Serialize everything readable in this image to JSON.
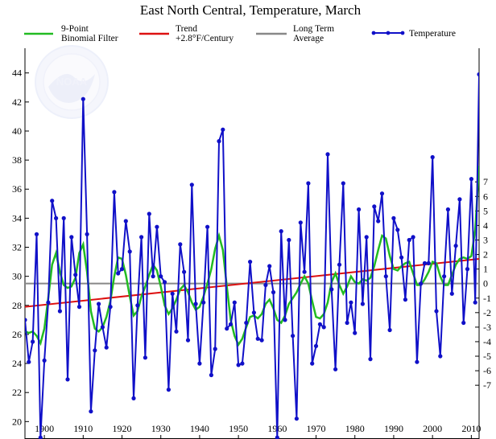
{
  "chart_data": {
    "type": "line",
    "title": "East North Central, Temperature, March",
    "legend": [
      {
        "label_lines": [
          "9-Point",
          "Binomial Filter"
        ],
        "color": "#22bb22",
        "kind": "line"
      },
      {
        "label_lines": [
          "Trend",
          "+2.8°F/Century"
        ],
        "color": "#dd1111",
        "kind": "line"
      },
      {
        "label_lines": [
          "Long Term",
          "Average"
        ],
        "color": "#888888",
        "kind": "line"
      },
      {
        "label_lines": [
          "Temperature"
        ],
        "color": "#1010c8",
        "kind": "line-marker"
      }
    ],
    "x_ticks": [
      1900,
      1910,
      1920,
      1930,
      1940,
      1950,
      1960,
      1970,
      1980,
      1990,
      2000,
      2010
    ],
    "xlim": [
      1895,
      2012
    ],
    "left_ticks": [
      20,
      22,
      24,
      26,
      28,
      30,
      32,
      34,
      36,
      38,
      40,
      42,
      44
    ],
    "ylim": [
      18.8,
      45.7
    ],
    "right_ticks": [
      -7,
      -6,
      -5,
      -4,
      -3,
      -2,
      -1,
      0,
      1,
      2,
      3,
      4,
      5,
      6,
      7
    ],
    "long_term_average": 29.5,
    "trend": {
      "start_year": 1895,
      "start_value": 27.9,
      "end_year": 2012,
      "end_value": 31.2
    },
    "years": [
      1895,
      1896,
      1897,
      1898,
      1899,
      1900,
      1901,
      1902,
      1903,
      1904,
      1905,
      1906,
      1907,
      1908,
      1909,
      1910,
      1911,
      1912,
      1913,
      1914,
      1915,
      1916,
      1917,
      1918,
      1919,
      1920,
      1921,
      1922,
      1923,
      1924,
      1925,
      1926,
      1927,
      1928,
      1929,
      1930,
      1931,
      1932,
      1933,
      1934,
      1935,
      1936,
      1937,
      1938,
      1939,
      1940,
      1941,
      1942,
      1943,
      1944,
      1945,
      1946,
      1947,
      1948,
      1949,
      1950,
      1951,
      1952,
      1953,
      1954,
      1955,
      1956,
      1957,
      1958,
      1959,
      1960,
      1961,
      1962,
      1963,
      1964,
      1965,
      1966,
      1967,
      1968,
      1969,
      1970,
      1971,
      1972,
      1973,
      1974,
      1975,
      1976,
      1977,
      1978,
      1979,
      1980,
      1981,
      1982,
      1983,
      1984,
      1985,
      1986,
      1987,
      1988,
      1989,
      1990,
      1991,
      1992,
      1993,
      1994,
      1995,
      1996,
      1997,
      1998,
      1999,
      2000,
      2001,
      2002,
      2003,
      2004,
      2005,
      2006,
      2007,
      2008,
      2009,
      2010,
      2011,
      2012
    ],
    "series": [
      {
        "name": "Temperature",
        "values": [
          27.0,
          24.1,
          25.5,
          32.9,
          18.9,
          24.2,
          28.2,
          35.2,
          34.0,
          27.6,
          34.0,
          22.9,
          32.7,
          30.1,
          27.9,
          42.2,
          32.9,
          20.7,
          24.9,
          28.1,
          26.5,
          25.1,
          27.9,
          35.8,
          30.2,
          30.5,
          33.8,
          31.7,
          21.6,
          28.0,
          32.7,
          24.4,
          34.3,
          30.0,
          33.4,
          30.0,
          29.6,
          22.2,
          28.8,
          26.2,
          32.2,
          30.3,
          25.6,
          36.3,
          28.1,
          24.0,
          28.2,
          33.4,
          23.2,
          25.0,
          39.3,
          40.1,
          26.4,
          26.7,
          28.2,
          23.9,
          24.0,
          26.8,
          31.0,
          27.5,
          25.7,
          25.6,
          29.4,
          30.7,
          28.9,
          18.9,
          33.1,
          27.0,
          32.5,
          25.9,
          20.2,
          33.7,
          30.3,
          36.4,
          24.0,
          25.2,
          26.7,
          26.5,
          38.4,
          29.1,
          23.6,
          30.8,
          36.4,
          26.8,
          28.2,
          26.1,
          34.6,
          28.1,
          32.7,
          24.3,
          34.8,
          33.8,
          35.7,
          30.0,
          26.3,
          34.0,
          33.2,
          31.3,
          28.4,
          32.5,
          32.7,
          24.1,
          29.5,
          30.9,
          30.9,
          38.2,
          27.6,
          24.5,
          30.0,
          34.6,
          28.8,
          32.1,
          35.3,
          26.8,
          30.5,
          36.7,
          28.2,
          43.9
        ]
      },
      {
        "name": "9-Point Binomial Filter",
        "values": [
          26.2,
          26.1,
          26.2,
          25.9,
          25.4,
          26.4,
          28.5,
          30.8,
          31.6,
          30.3,
          29.4,
          29.2,
          29.3,
          29.9,
          31.6,
          32.2,
          30.3,
          27.6,
          26.4,
          26.2,
          26.5,
          27.2,
          28.3,
          30.0,
          31.3,
          31.2,
          30.1,
          28.6,
          27.3,
          27.6,
          28.6,
          29.3,
          30.1,
          30.8,
          30.4,
          29.3,
          28.0,
          27.4,
          27.8,
          28.4,
          29.1,
          29.4,
          28.9,
          28.2,
          27.7,
          27.9,
          28.6,
          29.5,
          30.5,
          31.9,
          32.8,
          31.8,
          29.3,
          27.0,
          25.9,
          25.3,
          25.7,
          26.5,
          27.2,
          27.3,
          27.1,
          27.4,
          28.1,
          28.4,
          27.8,
          27.0,
          26.8,
          27.3,
          28.1,
          28.5,
          28.9,
          29.5,
          30.0,
          29.5,
          28.3,
          27.2,
          27.1,
          27.4,
          28.2,
          29.6,
          30.2,
          29.4,
          28.8,
          29.3,
          30.0,
          29.6,
          29.5,
          29.8,
          29.7,
          29.9,
          30.7,
          31.8,
          32.8,
          32.6,
          31.4,
          30.5,
          30.4,
          30.7,
          30.9,
          31.0,
          30.2,
          29.4,
          29.4,
          29.8,
          30.3,
          31.0,
          30.9,
          30.0,
          29.4,
          29.4,
          30.1,
          30.8,
          31.2,
          31.3,
          31.2,
          31.4,
          33.2,
          37.6
        ]
      }
    ]
  }
}
